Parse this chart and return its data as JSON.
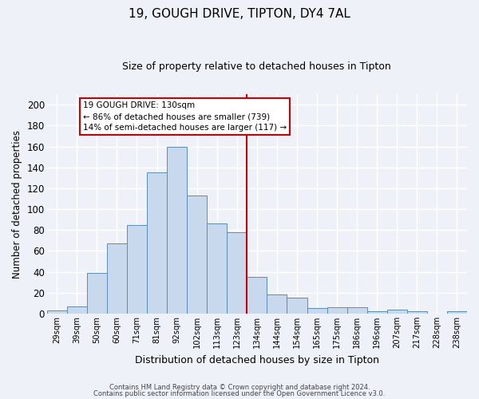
{
  "title": "19, GOUGH DRIVE, TIPTON, DY4 7AL",
  "subtitle": "Size of property relative to detached houses in Tipton",
  "xlabel": "Distribution of detached houses by size in Tipton",
  "ylabel": "Number of detached properties",
  "bar_labels": [
    "29sqm",
    "39sqm",
    "50sqm",
    "60sqm",
    "71sqm",
    "81sqm",
    "92sqm",
    "102sqm",
    "113sqm",
    "123sqm",
    "134sqm",
    "144sqm",
    "154sqm",
    "165sqm",
    "175sqm",
    "186sqm",
    "196sqm",
    "207sqm",
    "217sqm",
    "228sqm",
    "238sqm"
  ],
  "bar_values": [
    3,
    7,
    39,
    67,
    85,
    135,
    160,
    113,
    86,
    78,
    35,
    18,
    15,
    5,
    6,
    6,
    2,
    4,
    2,
    0,
    2
  ],
  "bar_color": "#c9d9ed",
  "bar_edge_color": "#5b8db8",
  "ylim": [
    0,
    210
  ],
  "yticks": [
    0,
    20,
    40,
    60,
    80,
    100,
    120,
    140,
    160,
    180,
    200
  ],
  "property_line_color": "#cc0000",
  "annotation_title": "19 GOUGH DRIVE: 130sqm",
  "annotation_line1": "← 86% of detached houses are smaller (739)",
  "annotation_line2": "14% of semi-detached houses are larger (117) →",
  "annotation_box_color": "#cc0000",
  "footer_line1": "Contains HM Land Registry data © Crown copyright and database right 2024.",
  "footer_line2": "Contains public sector information licensed under the Open Government Licence v3.0.",
  "background_color": "#eef2f8",
  "grid_color": "#ffffff",
  "property_bar_index": 10,
  "n_bars": 21
}
